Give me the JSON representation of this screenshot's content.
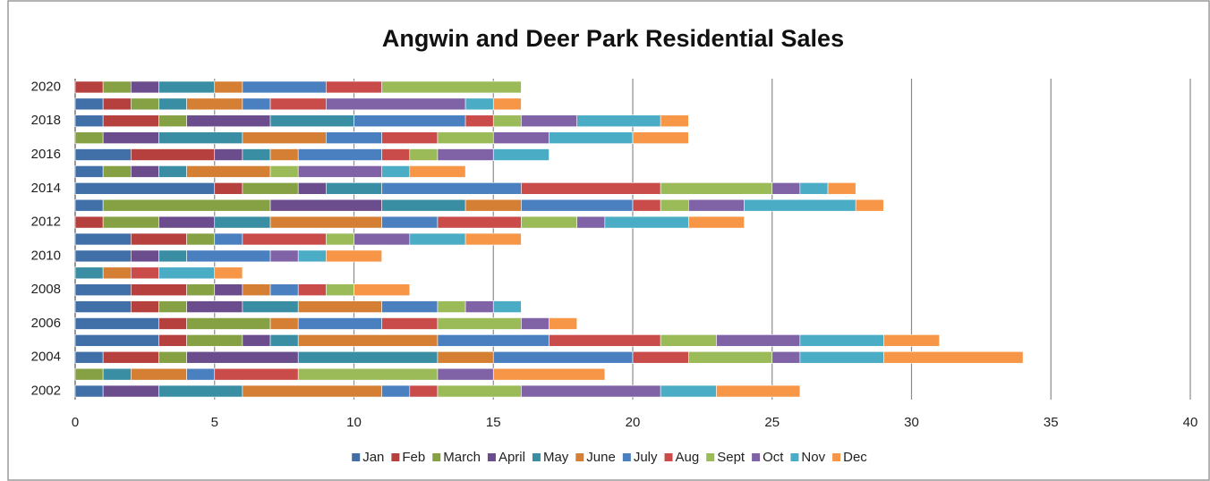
{
  "chart_data": {
    "type": "stacked_barh",
    "title": "Angwin and Deer Park Residential Sales",
    "categories": [
      "2002",
      null,
      "2004",
      null,
      "2006",
      null,
      "2008",
      null,
      "2010",
      null,
      "2012",
      null,
      "2014",
      null,
      "2016",
      null,
      "2018",
      null,
      "2020"
    ],
    "xlim": [
      0,
      40
    ],
    "xticks": [
      0,
      5,
      10,
      15,
      20,
      25,
      30,
      35,
      40
    ],
    "grid": true,
    "legend": "bottom",
    "series": [
      {
        "name": "Jan",
        "color": "#4170a9",
        "values": [
          1,
          0,
          1,
          3,
          3,
          2,
          2,
          0,
          2,
          2,
          0,
          1,
          5,
          1,
          2,
          0,
          1,
          1,
          0
        ]
      },
      {
        "name": "Feb",
        "color": "#b5403d",
        "values": [
          0,
          0,
          2,
          1,
          1,
          1,
          2,
          0,
          0,
          2,
          1,
          0,
          1,
          0,
          3,
          0,
          2,
          1,
          1
        ]
      },
      {
        "name": "March",
        "color": "#86a044",
        "values": [
          0,
          1,
          1,
          2,
          3,
          1,
          1,
          0,
          0,
          1,
          2,
          6,
          2,
          1,
          0,
          1,
          1,
          1,
          1
        ]
      },
      {
        "name": "April",
        "color": "#6b4d8d",
        "values": [
          2,
          0,
          4,
          1,
          0,
          2,
          1,
          0,
          1,
          0,
          2,
          4,
          1,
          1,
          1,
          2,
          3,
          0,
          1
        ]
      },
      {
        "name": "May",
        "color": "#3a8ea3",
        "values": [
          3,
          1,
          5,
          1,
          0,
          2,
          0,
          1,
          1,
          0,
          2,
          3,
          2,
          1,
          1,
          3,
          3,
          1,
          2
        ]
      },
      {
        "name": "June",
        "color": "#d57f35",
        "values": [
          5,
          2,
          2,
          5,
          1,
          3,
          1,
          1,
          0,
          0,
          4,
          2,
          0,
          3,
          1,
          3,
          0,
          2,
          1
        ]
      },
      {
        "name": "July",
        "color": "#4a7fc0",
        "values": [
          1,
          1,
          5,
          4,
          3,
          2,
          1,
          0,
          3,
          1,
          2,
          4,
          5,
          0,
          3,
          2,
          4,
          1,
          3
        ]
      },
      {
        "name": "Aug",
        "color": "#c94c4b",
        "values": [
          1,
          3,
          2,
          4,
          2,
          0,
          1,
          1,
          0,
          3,
          3,
          1,
          5,
          0,
          1,
          2,
          1,
          2,
          2
        ]
      },
      {
        "name": "Sept",
        "color": "#9bbb59",
        "values": [
          3,
          5,
          3,
          2,
          3,
          1,
          1,
          0,
          0,
          1,
          2,
          1,
          4,
          1,
          1,
          2,
          1,
          0,
          5
        ]
      },
      {
        "name": "Oct",
        "color": "#8063a6",
        "values": [
          5,
          2,
          1,
          3,
          1,
          1,
          0,
          0,
          1,
          2,
          1,
          2,
          1,
          3,
          2,
          2,
          2,
          5,
          0
        ]
      },
      {
        "name": "Nov",
        "color": "#4bacc6",
        "values": [
          2,
          0,
          3,
          3,
          0,
          1,
          0,
          2,
          1,
          2,
          3,
          4,
          1,
          1,
          2,
          3,
          3,
          1,
          0
        ]
      },
      {
        "name": "Dec",
        "color": "#f79646",
        "values": [
          3,
          4,
          5,
          2,
          1,
          0,
          2,
          1,
          2,
          2,
          2,
          1,
          1,
          2,
          0,
          2,
          1,
          1,
          0
        ]
      }
    ]
  }
}
